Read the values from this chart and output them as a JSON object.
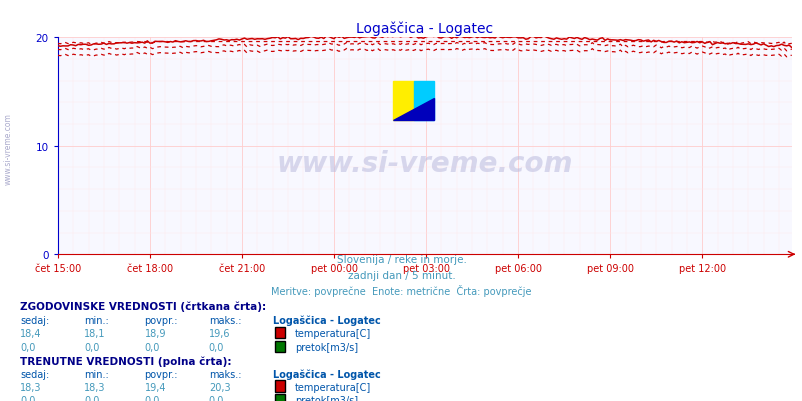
{
  "title": "Logaščica - Logatec",
  "background_color": "#ffffff",
  "plot_bg_color": "#f8f8ff",
  "grid_color_major": "#ffcccc",
  "grid_color_minor": "#ffe8e8",
  "x_labels": [
    "čet 15:00",
    "čet 18:00",
    "čet 21:00",
    "pet 00:00",
    "pet 03:00",
    "pet 06:00",
    "pet 09:00",
    "pet 12:00"
  ],
  "x_ticks_pos": [
    0,
    36,
    72,
    108,
    144,
    180,
    216,
    252
  ],
  "n_points": 288,
  "ylim": [
    0,
    20
  ],
  "yticks": [
    0,
    10,
    20
  ],
  "y_axis_color": "#0000cc",
  "x_axis_color": "#cc0000",
  "title_color": "#0000cc",
  "subtitle1": "Slovenija / reke in morje.",
  "subtitle2": "zadnji dan / 5 minut.",
  "subtitle3": "Meritve: povprečne  Enote: metrične  Črta: povprečje",
  "subtitle_color": "#4499bb",
  "watermark": "www.si-vreme.com",
  "line_color_solid": "#cc0000",
  "line_color_dashed": "#cc0000",
  "temp_hist_avg": 18.9,
  "temp_hist_min": 18.1,
  "temp_hist_max": 19.6,
  "temp_hist_cur": 18.4,
  "temp_curr_avg": 19.4,
  "temp_curr_min": 18.3,
  "temp_curr_max": 20.3,
  "temp_curr_cur": 18.3,
  "table_header_color": "#000088",
  "table_label_color": "#0055aa",
  "table_value_color": "#4499bb",
  "legend_text_color": "#0055aa",
  "left_label": "www.si-vreme.com",
  "left_label_color": "#aaaacc",
  "flow_color": "#007700"
}
